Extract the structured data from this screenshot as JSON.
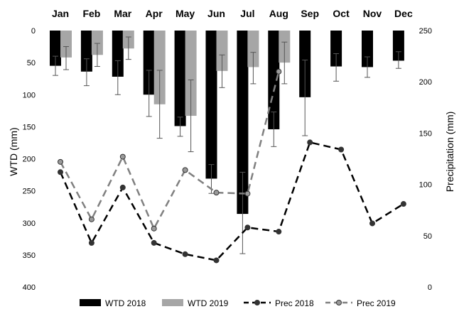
{
  "chart_data": {
    "type": "bar",
    "categories": [
      "Jan",
      "Feb",
      "Mar",
      "Apr",
      "May",
      "Jun",
      "Jul",
      "Aug",
      "Sep",
      "Oct",
      "Nov",
      "Dec"
    ],
    "series": [
      {
        "name": "WTD 2018",
        "kind": "bar",
        "axis": "left",
        "color": "#000000",
        "values": [
          55,
          64,
          72,
          100,
          149,
          231,
          286,
          154,
          104,
          56,
          57,
          47
        ],
        "err_low": [
          40,
          44,
          47,
          62,
          135,
          209,
          221,
          127,
          46,
          36,
          41,
          33
        ],
        "err_high": [
          70,
          86,
          100,
          134,
          165,
          254,
          348,
          181,
          164,
          79,
          73,
          59
        ]
      },
      {
        "name": "WTD 2019",
        "kind": "bar",
        "axis": "left",
        "color": "#a6a6a6",
        "values": [
          42,
          38,
          28,
          115,
          133,
          63,
          57,
          50,
          null,
          null,
          null,
          null
        ],
        "err_low": [
          25,
          20,
          10,
          62,
          77,
          38,
          34,
          18,
          null,
          null,
          null,
          null
        ],
        "err_high": [
          61,
          56,
          45,
          168,
          189,
          89,
          83,
          83,
          null,
          null,
          null,
          null
        ]
      },
      {
        "name": "Prec 2018",
        "kind": "line",
        "axis": "right",
        "color": "#000000",
        "values": [
          112,
          43,
          97,
          43,
          32,
          26,
          58,
          54,
          141,
          134,
          62,
          81
        ]
      },
      {
        "name": "Prec 2019",
        "kind": "line",
        "axis": "right",
        "color": "#808080",
        "values": [
          122,
          66,
          127,
          57,
          114,
          92,
          91,
          210,
          null,
          null,
          null,
          null
        ]
      }
    ],
    "left_axis": {
      "label": "WTD (mm)",
      "min": 0,
      "max": 400,
      "ticks": [
        0,
        50,
        100,
        150,
        200,
        250,
        300,
        350,
        400
      ],
      "inverted": true
    },
    "right_axis": {
      "label": "Precipitation (mm)",
      "min": 0,
      "max": 250,
      "ticks": [
        0,
        50,
        100,
        150,
        200,
        250
      ]
    },
    "grid": false,
    "legend_position": "bottom"
  }
}
